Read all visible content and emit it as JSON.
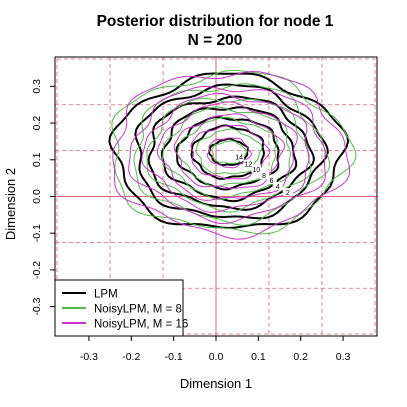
{
  "chart_data": {
    "type": "contour",
    "title": "Posterior distribution for node 1",
    "subtitle": "N = 200",
    "xlabel": "Dimension 1",
    "ylabel": "Dimension 2",
    "xlim": [
      -0.38,
      0.38
    ],
    "ylim": [
      -0.38,
      0.38
    ],
    "x_ticks": [
      "-0.3",
      "-0.2",
      "-0.1",
      "0.0",
      "0.1",
      "0.2",
      "0.3"
    ],
    "y_ticks": [
      "-0.3",
      "-0.2",
      "-0.1",
      "0.0",
      "0.1",
      "0.2",
      "0.3"
    ],
    "grid": "dashed",
    "dashed_grid_x": [
      -0.25,
      -0.125,
      0.125,
      0.25
    ],
    "dashed_grid_y": [
      -0.25,
      -0.125,
      0.125,
      0.25
    ],
    "reference_lines": {
      "x": 0,
      "y": 0,
      "color": "#e0607a"
    },
    "center": [
      0.03,
      0.12
    ],
    "legend": {
      "position": "bottom-left",
      "entries": [
        {
          "label": "LPM",
          "color": "#000000"
        },
        {
          "label": "NoisyLPM, M = 8",
          "color": "#4dbf45"
        },
        {
          "label": "NoisyLPM, M = 16",
          "color": "#cc33cc"
        }
      ]
    },
    "series": [
      {
        "name": "LPM",
        "color": "#000000",
        "levels": [
          {
            "label": "2",
            "rx": 0.27,
            "ry": 0.21
          },
          {
            "label": "4",
            "rx": 0.22,
            "ry": 0.18
          },
          {
            "label": "6",
            "rx": 0.19,
            "ry": 0.15
          },
          {
            "label": "8",
            "rx": 0.155,
            "ry": 0.125
          },
          {
            "label": "10",
            "rx": 0.12,
            "ry": 0.095
          },
          {
            "label": "12",
            "rx": 0.085,
            "ry": 0.07
          },
          {
            "label": "14",
            "rx": 0.045,
            "ry": 0.035
          }
        ]
      },
      {
        "name": "NoisyLPM, M = 8",
        "color": "#4dbf45",
        "levels": [
          {
            "label": "2",
            "rx": 0.28,
            "ry": 0.215
          },
          {
            "label": "4",
            "rx": 0.225,
            "ry": 0.185
          },
          {
            "label": "6",
            "rx": 0.19,
            "ry": 0.15
          },
          {
            "label": "8",
            "rx": 0.15,
            "ry": 0.12
          },
          {
            "label": "10",
            "rx": 0.115,
            "ry": 0.09
          },
          {
            "label": "12",
            "rx": 0.075,
            "ry": 0.06
          },
          {
            "label": "14",
            "rx": 0.04,
            "ry": 0.03
          }
        ]
      },
      {
        "name": "NoisyLPM, M = 16",
        "color": "#cc33cc",
        "levels": [
          {
            "label": "2",
            "rx": 0.275,
            "ry": 0.22
          },
          {
            "label": "4",
            "rx": 0.23,
            "ry": 0.18
          },
          {
            "label": "6",
            "rx": 0.195,
            "ry": 0.155
          },
          {
            "label": "8",
            "rx": 0.16,
            "ry": 0.13
          },
          {
            "label": "10",
            "rx": 0.125,
            "ry": 0.1
          },
          {
            "label": "12",
            "rx": 0.09,
            "ry": 0.072
          },
          {
            "label": "14",
            "rx": 0.05,
            "ry": 0.04
          }
        ]
      }
    ]
  }
}
